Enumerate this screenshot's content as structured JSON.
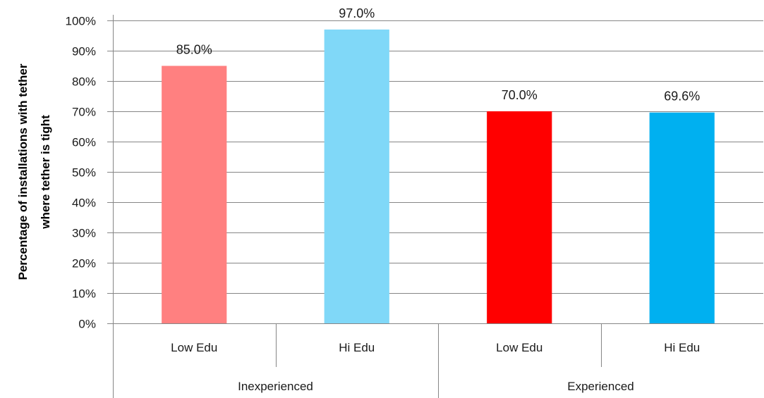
{
  "chart_data": {
    "type": "bar",
    "ylabel_lines": [
      "Percentage of installations with tether",
      "where tether is tight"
    ],
    "ylim": [
      0,
      100
    ],
    "yticks": [
      "0%",
      "10%",
      "20%",
      "30%",
      "40%",
      "50%",
      "60%",
      "70%",
      "80%",
      "90%",
      "100%"
    ],
    "grid": true,
    "groups": [
      {
        "label": "Inexperienced",
        "categories": [
          "Low Edu",
          "Hi Edu"
        ]
      },
      {
        "label": "Experienced",
        "categories": [
          "Low Edu",
          "Hi Edu"
        ]
      }
    ],
    "bars": [
      {
        "group": "Inexperienced",
        "category": "Low Edu",
        "value": 85.0,
        "label": "85.0%",
        "color": "#ff8080"
      },
      {
        "group": "Inexperienced",
        "category": "Hi Edu",
        "value": 97.0,
        "label": "97.0%",
        "color": "#80d8f8"
      },
      {
        "group": "Experienced",
        "category": "Low Edu",
        "value": 70.0,
        "label": "70.0%",
        "color": "#ff0000"
      },
      {
        "group": "Experienced",
        "category": "Hi Edu",
        "value": 69.6,
        "label": "69.6%",
        "color": "#00b0f0"
      }
    ]
  }
}
